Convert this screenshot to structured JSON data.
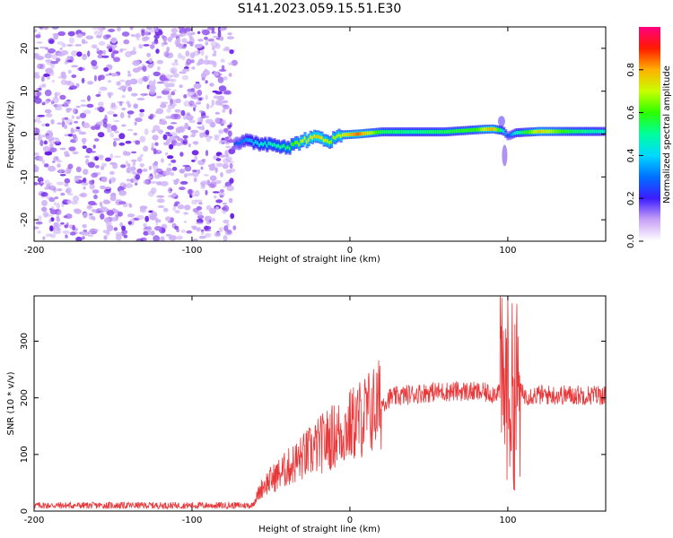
{
  "title": "S141.2023.059.15.51.E30",
  "chart_data": [
    {
      "type": "heatmap",
      "xlabel": "Height of straight line (km)",
      "ylabel": "Frequency (Hz)",
      "xlim": [
        -200,
        162
      ],
      "ylim": [
        -25,
        25
      ],
      "x_ticks": [
        -200,
        -100,
        0,
        100
      ],
      "y_ticks": [
        -20,
        -10,
        0,
        10,
        20
      ],
      "colorbar": {
        "label": "Normalized spectral amplitude",
        "range": [
          0,
          1
        ],
        "ticks": [
          0.0,
          0.2,
          0.4,
          0.6,
          0.8
        ]
      },
      "noise_region_x": [
        -200,
        -73
      ],
      "ridge": {
        "x": [
          -73,
          -65,
          -55,
          -45,
          -38,
          -30,
          -20,
          -12,
          -5,
          5,
          20,
          40,
          60,
          80,
          90,
          97,
          100,
          105,
          120,
          140,
          162
        ],
        "freq": [
          -2,
          -1.8,
          -2.2,
          -2.5,
          -3,
          -1.5,
          -0.8,
          -1.5,
          -0.2,
          0,
          0.5,
          0.5,
          0.5,
          1.0,
          1.2,
          0.8,
          -0.5,
          0.3,
          0.6,
          0.6,
          0.6
        ],
        "amplitude": [
          0.25,
          0.35,
          0.45,
          0.5,
          0.55,
          0.7,
          0.75,
          0.65,
          0.7,
          0.85,
          0.55,
          0.5,
          0.55,
          0.6,
          0.8,
          0.45,
          0.25,
          0.45,
          0.75,
          0.55,
          0.45
        ]
      }
    },
    {
      "type": "line",
      "xlabel": "Height of straight line (km)",
      "ylabel": "SNR (10 * v/v)",
      "xlim": [
        -200,
        162
      ],
      "ylim": [
        0,
        380
      ],
      "x_ticks": [
        -200,
        -100,
        0,
        100
      ],
      "y_ticks": [
        0,
        100,
        200,
        300
      ],
      "series": [
        {
          "color": "#e8383a",
          "x": [
            -200,
            -180,
            -160,
            -140,
            -120,
            -100,
            -80,
            -62,
            -55,
            -45,
            -35,
            -25,
            -15,
            -5,
            5,
            15,
            25,
            35,
            50,
            70,
            90,
            97,
            100,
            103,
            106,
            110,
            120,
            140,
            162
          ],
          "y": [
            10,
            10,
            10,
            10,
            10,
            10,
            10,
            10,
            45,
            65,
            85,
            105,
            125,
            140,
            160,
            180,
            200,
            205,
            210,
            212,
            208,
            215,
            220,
            200,
            215,
            205,
            205,
            205,
            205
          ]
        }
      ]
    }
  ]
}
